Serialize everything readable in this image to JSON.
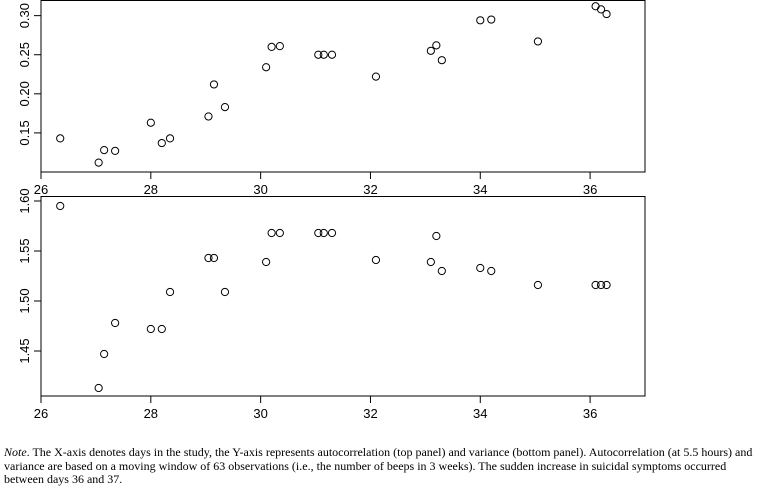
{
  "chart_data": [
    {
      "type": "scatter",
      "panel": "top",
      "title": "",
      "xlabel": "",
      "ylabel": "",
      "xlim": [
        26,
        37
      ],
      "ylim": [
        0.1,
        0.32
      ],
      "xticks": [
        26,
        28,
        30,
        32,
        34,
        36
      ],
      "yticks": [
        0.15,
        0.2,
        0.25,
        0.3
      ],
      "xtick_labels": [
        "26",
        "28",
        "30",
        "32",
        "34",
        "36"
      ],
      "ytick_labels": [
        "0.15",
        "0.20",
        "0.25",
        "0.30"
      ],
      "grid": false,
      "x": [
        26.35,
        27.05,
        27.15,
        27.35,
        28.0,
        28.2,
        28.35,
        29.05,
        29.15,
        29.35,
        30.1,
        30.2,
        30.35,
        31.05,
        31.15,
        31.3,
        32.1,
        33.1,
        33.2,
        33.3,
        34.0,
        34.2,
        35.05,
        36.1,
        36.2,
        36.3
      ],
      "y": [
        0.143,
        0.112,
        0.128,
        0.127,
        0.163,
        0.137,
        0.143,
        0.171,
        0.212,
        0.183,
        0.234,
        0.26,
        0.261,
        0.25,
        0.25,
        0.25,
        0.222,
        0.255,
        0.262,
        0.243,
        0.294,
        0.295,
        0.267,
        0.312,
        0.308,
        0.302
      ]
    },
    {
      "type": "scatter",
      "panel": "bottom",
      "title": "",
      "xlabel": "",
      "ylabel": "",
      "xlim": [
        26,
        37
      ],
      "ylim": [
        1.405,
        1.605
      ],
      "xticks": [
        26,
        28,
        30,
        32,
        34,
        36
      ],
      "yticks": [
        1.45,
        1.5,
        1.55,
        1.6
      ],
      "xtick_labels": [
        "26",
        "28",
        "30",
        "32",
        "34",
        "36"
      ],
      "ytick_labels": [
        "1.45",
        "1.50",
        "1.55",
        "1.60"
      ],
      "grid": false,
      "x": [
        26.35,
        27.05,
        27.15,
        27.35,
        28.0,
        28.2,
        28.35,
        29.05,
        29.15,
        29.35,
        30.1,
        30.2,
        30.35,
        31.05,
        31.15,
        31.3,
        32.1,
        33.1,
        33.2,
        33.3,
        34.0,
        34.2,
        35.05,
        36.1,
        36.2,
        36.3
      ],
      "y": [
        1.595,
        1.413,
        1.447,
        1.478,
        1.472,
        1.472,
        1.509,
        1.543,
        1.543,
        1.509,
        1.539,
        1.568,
        1.568,
        1.568,
        1.568,
        1.568,
        1.541,
        1.539,
        1.565,
        1.53,
        1.533,
        1.53,
        1.516,
        1.516,
        1.516,
        1.516
      ]
    }
  ],
  "note": {
    "label": "Note",
    "text": ". The X-axis denotes days in the study, the Y-axis represents autocorrelation (top panel) and variance (bottom panel). Autocorrelation (at 5.5 hours) and variance are based on a moving window of 63 observations (i.e., the number of beeps in 3 weeks). The sudden increase in suicidal symptoms occurred between days 36 and 37."
  }
}
